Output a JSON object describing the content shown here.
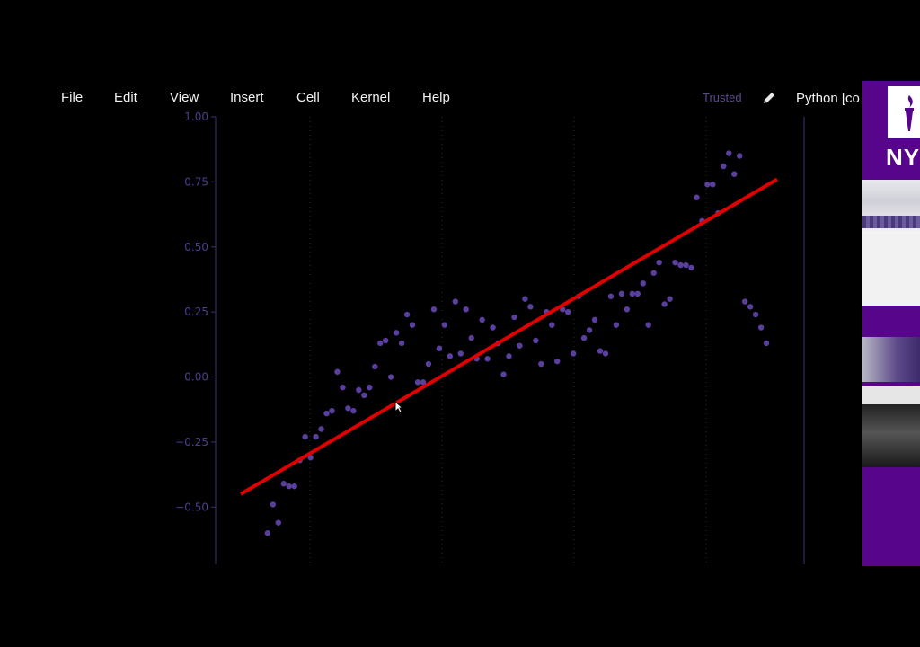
{
  "menu": {
    "items": [
      "File",
      "Edit",
      "View",
      "Insert",
      "Cell",
      "Kernel",
      "Help"
    ],
    "trusted_label": "Trusted",
    "kernel_label": "Python [co"
  },
  "side_panel": {
    "logo_text": "NY",
    "brand_color": "#57068c"
  },
  "icons": {
    "edit": "pencil-icon",
    "logo": "torch-icon",
    "cursor": "mouse-cursor-icon"
  },
  "chart_data": {
    "type": "scatter",
    "title": "",
    "xlabel": "",
    "ylabel": "",
    "ylim": [
      -0.72,
      1.0
    ],
    "xlim": [
      0,
      100
    ],
    "yticks": [
      "1.00",
      "0.75",
      "0.50",
      "0.25",
      "0.00",
      "−0.25",
      "−0.50"
    ],
    "ytick_values": [
      1.0,
      0.75,
      0.5,
      0.25,
      0.0,
      -0.25,
      -0.5
    ],
    "grid": "dotted vertical",
    "point_color": "#5b3f9e",
    "line_color": "#e00000",
    "points": {
      "x": [
        5,
        6,
        7,
        8,
        9,
        10,
        11,
        12,
        13,
        14,
        15,
        16,
        17,
        18,
        19,
        20,
        21,
        22,
        23,
        24,
        25,
        26,
        27,
        28,
        29,
        30,
        31,
        32,
        33,
        34,
        35,
        36,
        37,
        38,
        39,
        40,
        41,
        42,
        43,
        44,
        45,
        46,
        47,
        48,
        49,
        50,
        51,
        52,
        53,
        54,
        55,
        56,
        57,
        58,
        59,
        60,
        61,
        62,
        63,
        64,
        65,
        66,
        67,
        68,
        69,
        70,
        71,
        72,
        73,
        74,
        75,
        76,
        77,
        78,
        79,
        80,
        81,
        82,
        83,
        84,
        85,
        86,
        87,
        88,
        89,
        90,
        91,
        92,
        93,
        94,
        95,
        96,
        97,
        98
      ],
      "y": [
        -0.6,
        -0.49,
        -0.56,
        -0.41,
        -0.42,
        -0.42,
        -0.32,
        -0.23,
        -0.31,
        -0.23,
        -0.2,
        -0.14,
        -0.13,
        0.02,
        -0.04,
        -0.12,
        -0.13,
        -0.05,
        -0.07,
        -0.04,
        0.04,
        0.13,
        0.14,
        0.0,
        0.17,
        0.13,
        0.24,
        0.2,
        -0.02,
        -0.02,
        0.05,
        0.26,
        0.11,
        0.2,
        0.08,
        0.29,
        0.09,
        0.26,
        0.15,
        0.07,
        0.22,
        0.07,
        0.19,
        0.13,
        0.01,
        0.08,
        0.23,
        0.12,
        0.3,
        0.27,
        0.14,
        0.05,
        0.25,
        0.2,
        0.06,
        0.26,
        0.25,
        0.09,
        0.31,
        0.15,
        0.18,
        0.22,
        0.1,
        0.09,
        0.31,
        0.2,
        0.32,
        0.26,
        0.32,
        0.32,
        0.36,
        0.2,
        0.4,
        0.44,
        0.28,
        0.3,
        0.44,
        0.43,
        0.43,
        0.42,
        0.69,
        0.6,
        0.74,
        0.74,
        0.63,
        0.81,
        0.86,
        0.78,
        0.85,
        0.29,
        0.27,
        0.24,
        0.19,
        0.13
      ]
    },
    "fit_line": {
      "x": [
        0,
        100
      ],
      "y": [
        -0.45,
        0.76
      ]
    }
  }
}
